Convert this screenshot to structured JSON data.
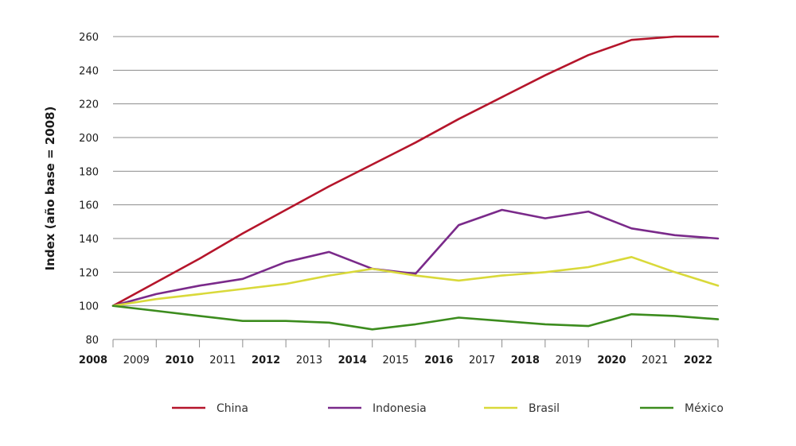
{
  "chart_data": {
    "type": "line",
    "ylabel": "Index (año base = 2008)",
    "ylim": [
      80,
      260
    ],
    "yticks": [
      "80",
      "100",
      "120",
      "140",
      "160",
      "180",
      "200",
      "220",
      "240",
      "260"
    ],
    "x": [
      2008,
      2009,
      2010,
      2011,
      2012,
      2013,
      2014,
      2015,
      2016,
      2017,
      2018,
      2019,
      2020,
      2021,
      2022
    ],
    "xtick_labels": [
      {
        "label": "2008",
        "bold": true
      },
      {
        "label": "2009",
        "bold": false
      },
      {
        "label": "2010",
        "bold": true
      },
      {
        "label": "2011",
        "bold": false
      },
      {
        "label": "2012",
        "bold": true
      },
      {
        "label": "2013",
        "bold": false
      },
      {
        "label": "2014",
        "bold": true
      },
      {
        "label": "2015",
        "bold": false
      },
      {
        "label": "2016",
        "bold": true
      },
      {
        "label": "2017",
        "bold": false
      },
      {
        "label": "2018",
        "bold": true
      },
      {
        "label": "2019",
        "bold": false
      },
      {
        "label": "2020",
        "bold": true
      },
      {
        "label": "2021",
        "bold": false
      },
      {
        "label": "2022",
        "bold": true
      }
    ],
    "grid": true,
    "legend_position": "bottom",
    "series": [
      {
        "name": "China",
        "color": "#b5152b",
        "values": [
          100,
          114,
          128,
          143,
          157,
          171,
          184,
          197,
          211,
          224,
          237,
          249,
          258,
          260,
          260
        ]
      },
      {
        "name": "Indonesia",
        "color": "#7a2a8a",
        "values": [
          100,
          107,
          112,
          116,
          126,
          132,
          122,
          119,
          148,
          157,
          152,
          156,
          146,
          142,
          140
        ]
      },
      {
        "name": "Brasil",
        "color": "#d9d93a",
        "values": [
          100,
          104,
          107,
          110,
          113,
          118,
          122,
          118,
          115,
          118,
          120,
          123,
          129,
          120,
          112
        ]
      },
      {
        "name": "México",
        "color": "#3c8c1e",
        "values": [
          100,
          97,
          94,
          91,
          91,
          90,
          86,
          89,
          93,
          91,
          89,
          88,
          95,
          94,
          92
        ]
      }
    ]
  }
}
